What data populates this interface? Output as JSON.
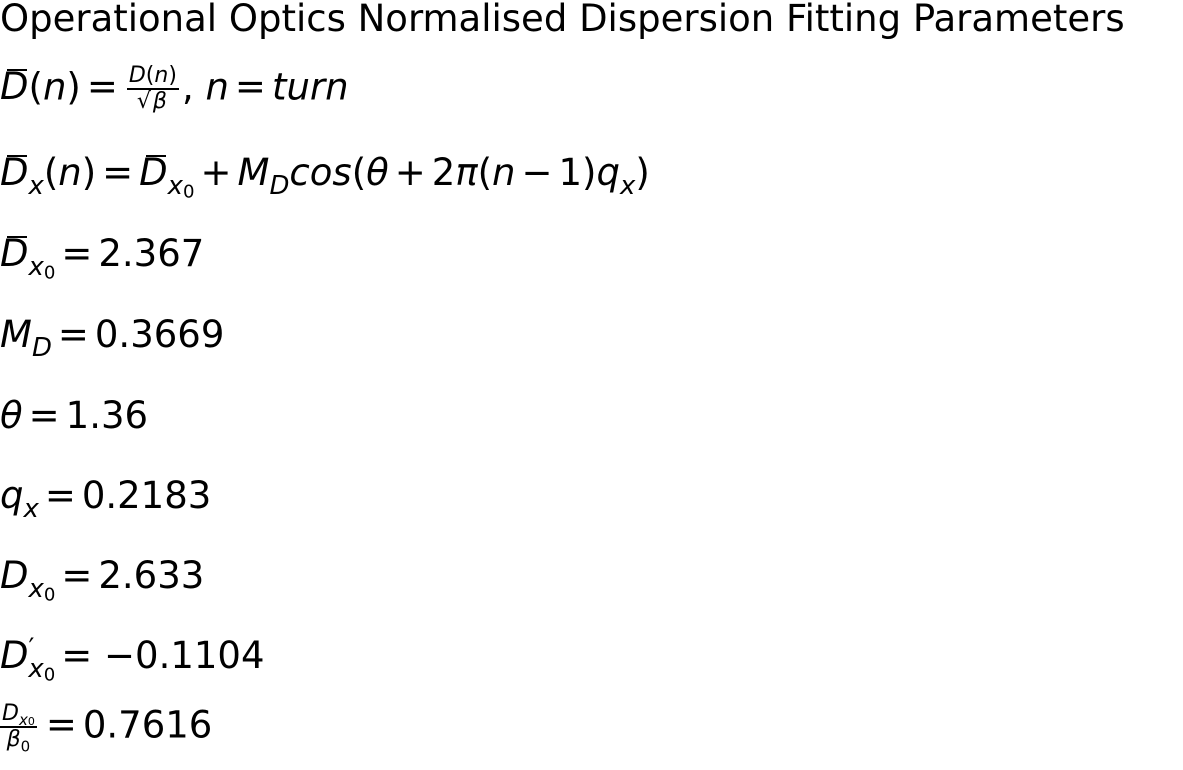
{
  "title": "Operational Optics Normalised Dispersion Fitting Parameters",
  "definitions": {
    "turn_text": "turn"
  },
  "parameters": {
    "Dbar_x0": "2.367",
    "M_D": "0.3669",
    "theta": "1.36",
    "q_x": "0.2183",
    "D_x0": "2.633",
    "Dprime_x0": "−0.1104",
    "D_x0_over_beta0": "0.7616"
  }
}
